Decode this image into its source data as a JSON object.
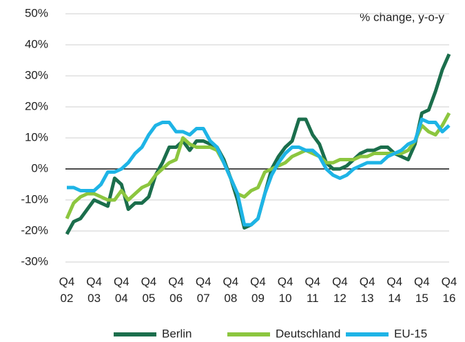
{
  "chart_data": {
    "type": "line",
    "annotation": "% change, y-o-y",
    "categories": [
      "Q4 02",
      null,
      null,
      null,
      "Q4 03",
      null,
      null,
      null,
      "Q4 04",
      null,
      null,
      null,
      "Q4 05",
      null,
      null,
      null,
      "Q4 06",
      null,
      null,
      null,
      "Q4 07",
      null,
      null,
      null,
      "Q4 08",
      null,
      null,
      null,
      "Q4 09",
      null,
      null,
      null,
      "Q4 10",
      null,
      null,
      null,
      "Q4 11",
      null,
      null,
      null,
      "Q4 12",
      null,
      null,
      null,
      "Q4 13",
      null,
      null,
      null,
      "Q4 14",
      null,
      null,
      null,
      "Q4 15",
      null,
      null,
      null,
      "Q4 16"
    ],
    "series": [
      {
        "name": "Berlin",
        "color": "#1b6e4c",
        "values": [
          -21,
          -17,
          -16,
          -13,
          -10,
          -11,
          -12,
          -3,
          -5,
          -13,
          -11,
          -11,
          -9,
          -2,
          2,
          7,
          7,
          9,
          6,
          9,
          9,
          8,
          7,
          3,
          -3,
          -10,
          -19,
          -18,
          -16,
          -8,
          0,
          4,
          7,
          9,
          16,
          16,
          11,
          8,
          2,
          0,
          0,
          1,
          3,
          5,
          6,
          6,
          7,
          7,
          5,
          4,
          3,
          8,
          18,
          19,
          25,
          32,
          37
        ]
      },
      {
        "name": "Deutschland",
        "color": "#8cc63f",
        "values": [
          -16,
          -11,
          -9,
          -8,
          -8,
          -9,
          -10,
          -10,
          -7,
          -10,
          -8,
          -6,
          -5,
          -2,
          0,
          2,
          3,
          10,
          8,
          7,
          7,
          7,
          6,
          2,
          -3,
          -8,
          -9,
          -7,
          -6,
          -1,
          0,
          1,
          2,
          4,
          5,
          6,
          5,
          4,
          2,
          2,
          3,
          3,
          3,
          4,
          4,
          5,
          5,
          5,
          5,
          5,
          6,
          9,
          14,
          12,
          11,
          14,
          18
        ]
      },
      {
        "name": "EU-15",
        "color": "#1eb4e6",
        "values": [
          -6,
          -6,
          -7,
          -7,
          -7,
          -5,
          -1,
          -1,
          0,
          2,
          5,
          7,
          11,
          14,
          15,
          15,
          12,
          12,
          11,
          13,
          13,
          9,
          7,
          2,
          -3,
          -8,
          -18,
          -18,
          -16,
          -8,
          -2,
          2,
          5,
          7,
          7,
          6,
          6,
          4,
          0,
          -2,
          -3,
          -2,
          0,
          1,
          2,
          2,
          2,
          4,
          5,
          6,
          8,
          9,
          16,
          15,
          15,
          12,
          14
        ]
      }
    ],
    "ylim": [
      -30,
      50
    ],
    "yticks": [
      {
        "value": -30,
        "label": "-30%"
      },
      {
        "value": -20,
        "label": "-20%"
      },
      {
        "value": -10,
        "label": "-10%"
      },
      {
        "value": 0,
        "label": "0%"
      },
      {
        "value": 10,
        "label": "10%"
      },
      {
        "value": 20,
        "label": "20%"
      },
      {
        "value": 30,
        "label": "30%"
      },
      {
        "value": 40,
        "label": "40%"
      },
      {
        "value": 50,
        "label": "50%"
      }
    ],
    "grid": true
  }
}
